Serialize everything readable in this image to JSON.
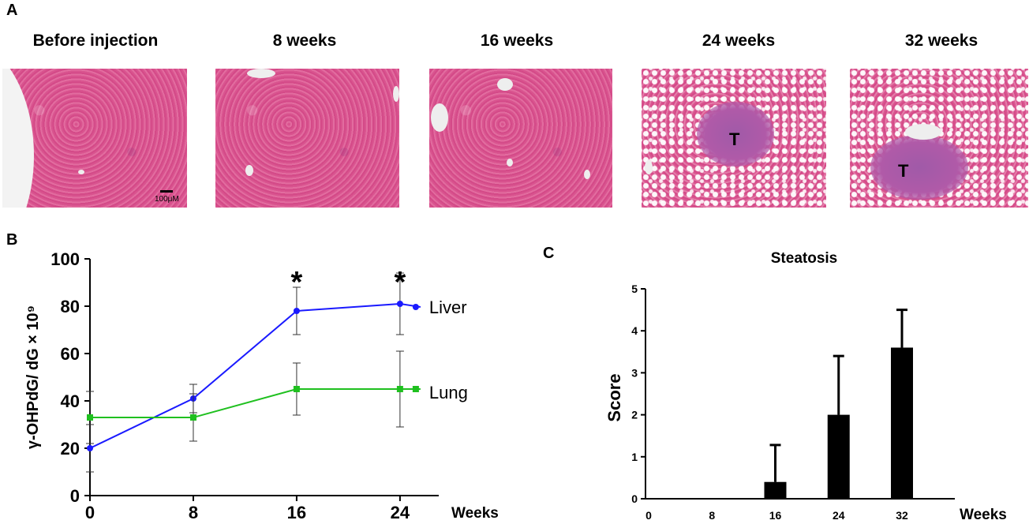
{
  "panels": {
    "a": "A",
    "b": "B",
    "c": "C"
  },
  "micrographs": [
    {
      "title": "Before injection",
      "scale": "100μM",
      "mark": ""
    },
    {
      "title": "8 weeks",
      "scale": "",
      "mark": ""
    },
    {
      "title": "16 weeks",
      "scale": "",
      "mark": ""
    },
    {
      "title": "24 weeks",
      "scale": "",
      "mark": "T"
    },
    {
      "title": "32 weeks",
      "scale": "",
      "mark": "T"
    }
  ],
  "chart_data": [
    {
      "type": "line",
      "title": "",
      "ylabel": "γ-OHPdG/ dG × 10⁹",
      "xlabel": "Weeks",
      "x": [
        0,
        8,
        16,
        24
      ],
      "xlim": [
        0,
        27
      ],
      "ylim": [
        0,
        100
      ],
      "yticks": [
        0,
        20,
        40,
        60,
        80,
        100
      ],
      "xticks": [
        0,
        8,
        16,
        24
      ],
      "series": [
        {
          "name": "Liver",
          "color": "#1a1aff",
          "marker": "circle",
          "values": [
            20,
            41,
            78,
            81
          ],
          "errors": [
            10,
            6,
            10,
            13
          ]
        },
        {
          "name": "Lung",
          "color": "#1fc01f",
          "marker": "square",
          "values": [
            33,
            33,
            45,
            45
          ],
          "errors": [
            11,
            10,
            11,
            16
          ]
        }
      ],
      "annotations": [
        {
          "x": 16,
          "text": "*"
        },
        {
          "x": 24,
          "text": "*"
        }
      ]
    },
    {
      "type": "bar",
      "title": "Steatosis",
      "ylabel": "Score",
      "xlabel": "Weeks",
      "categories": [
        "0",
        "8",
        "16",
        "24",
        "32"
      ],
      "values": [
        0,
        0,
        0.4,
        2.0,
        3.6
      ],
      "errors": [
        0,
        0,
        0.88,
        1.4,
        0.9
      ],
      "ylim": [
        0,
        5
      ],
      "yticks": [
        0,
        1,
        2,
        3,
        4,
        5
      ],
      "color": "#000000"
    }
  ]
}
